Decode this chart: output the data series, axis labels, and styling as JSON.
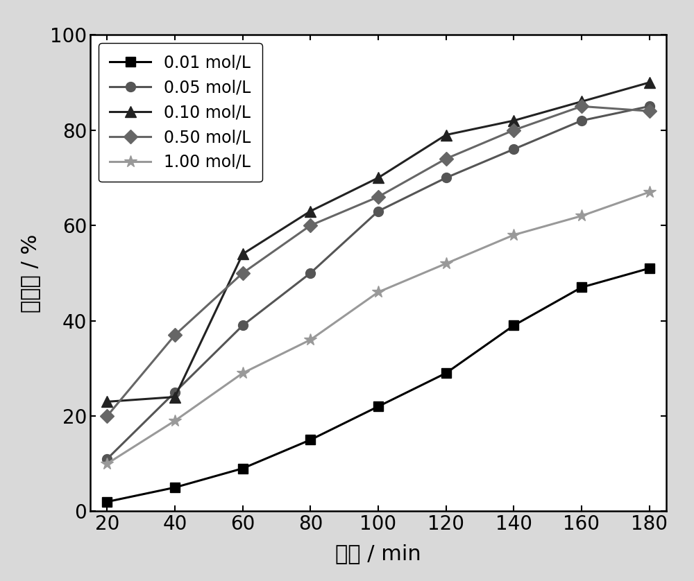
{
  "x": [
    20,
    40,
    60,
    80,
    100,
    120,
    140,
    160,
    180
  ],
  "series": [
    {
      "label": "0.01 mol/L",
      "y": [
        2,
        5,
        9,
        15,
        22,
        29,
        39,
        47,
        51
      ],
      "color": "#000000",
      "marker": "s",
      "markersize": 10,
      "linewidth": 2.2
    },
    {
      "label": "0.05 mol/L",
      "y": [
        11,
        25,
        39,
        50,
        63,
        70,
        76,
        82,
        85
      ],
      "color": "#555555",
      "marker": "o",
      "markersize": 10,
      "linewidth": 2.2
    },
    {
      "label": "0.10 mol/L",
      "y": [
        23,
        24,
        54,
        63,
        70,
        79,
        82,
        86,
        90
      ],
      "color": "#222222",
      "marker": "^",
      "markersize": 11,
      "linewidth": 2.2
    },
    {
      "label": "0.50 mol/L",
      "y": [
        20,
        37,
        50,
        60,
        66,
        74,
        80,
        85,
        84
      ],
      "color": "#666666",
      "marker": "D",
      "markersize": 10,
      "linewidth": 2.2
    },
    {
      "label": "1.00 mol/L",
      "y": [
        10,
        19,
        29,
        36,
        46,
        52,
        58,
        62,
        67
      ],
      "color": "#999999",
      "marker": "*",
      "markersize": 13,
      "linewidth": 2.2
    }
  ],
  "xlabel": "时间 / min",
  "ylabel": "降解率 / %",
  "xlim": [
    15,
    185
  ],
  "ylim": [
    0,
    100
  ],
  "xticks": [
    20,
    40,
    60,
    80,
    100,
    120,
    140,
    160,
    180
  ],
  "yticks": [
    0,
    20,
    40,
    60,
    80,
    100
  ],
  "label_fontsize": 22,
  "tick_fontsize": 20,
  "legend_fontsize": 17,
  "legend_loc": "upper left",
  "background_color": "#ffffff",
  "outer_background": "#d9d9d9",
  "grid": false
}
